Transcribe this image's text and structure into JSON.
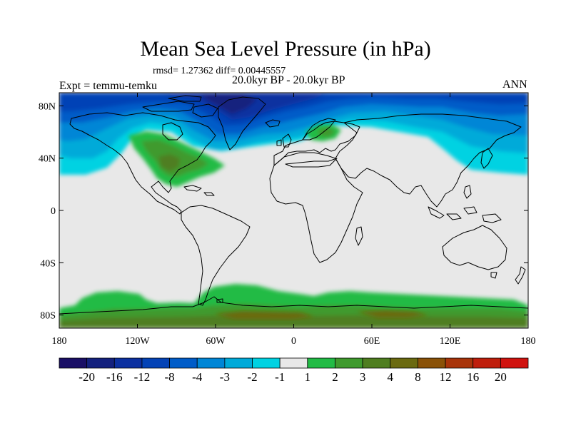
{
  "title": "Mean Sea Level Pressure (in hPa)",
  "stats": "rmsd= 1.27362 diff= 0.00445557",
  "period": "20.0kyr BP - 20.0kyr BP",
  "expt": "Expt = temmu-temku",
  "season": "ANN",
  "map": {
    "lon_ticks": [
      "180",
      "120W",
      "60W",
      "0",
      "60E",
      "120E",
      "180"
    ],
    "lat_ticks": [
      "80N",
      "40N",
      "0",
      "40S",
      "80S"
    ],
    "lat_tick_values": [
      80,
      40,
      0,
      -40,
      -80
    ],
    "lon_range": [
      -180,
      180
    ],
    "lat_range": [
      -90,
      90
    ],
    "ocean_color": "#e8e8e8",
    "coastline_color": "#000000"
  },
  "colorbar": {
    "labels": [
      "-20",
      "-16",
      "-12",
      "-8",
      "-4",
      "-3",
      "-2",
      "-1",
      "1",
      "2",
      "3",
      "4",
      "8",
      "12",
      "16",
      "20"
    ],
    "colors": [
      "#1a0f66",
      "#14217e",
      "#0c30a0",
      "#0443b6",
      "#005cc8",
      "#0086d6",
      "#00aad9",
      "#00d2e2",
      "#e8e8e8",
      "#22bb45",
      "#3f9a2e",
      "#4f7e20",
      "#6b6a10",
      "#8a5208",
      "#a8340a",
      "#bf1e0c",
      "#d0130f"
    ]
  }
}
